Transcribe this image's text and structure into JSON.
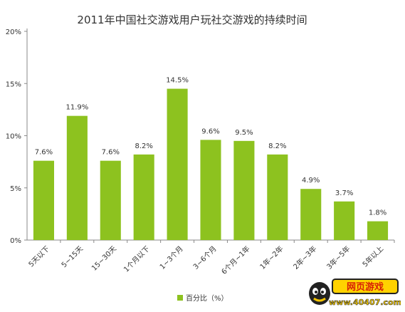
{
  "chart_data": {
    "type": "bar",
    "title": "2011年中国社交游戏用户玩社交游戏的持续时间",
    "categories": [
      "5天以下",
      "5~15天",
      "15~30天",
      "1个月以下",
      "1~3个月",
      "3~6个月",
      "6个月~1年",
      "1年~2年",
      "2年~3年",
      "3年~5年",
      "5年以上"
    ],
    "series": [
      {
        "name": "百分比（%）",
        "values": [
          7.6,
          11.9,
          7.6,
          8.2,
          14.5,
          9.6,
          9.5,
          8.2,
          4.9,
          3.7,
          1.8
        ],
        "labels": [
          "7.6%",
          "11.9%",
          "7.6%",
          "8.2%",
          "14.5%",
          "9.6%",
          "9.5%",
          "8.2%",
          "4.9%",
          "3.7%",
          "1.8%"
        ]
      }
    ],
    "yticks": [
      "0%",
      "5%",
      "10%",
      "15%",
      "20%"
    ],
    "ylim": [
      0,
      20
    ],
    "grid": false,
    "legend_position": "bottom-center",
    "bar_color": "#8dc21f"
  },
  "watermark": {
    "text_top": "网页游戏",
    "text_bottom": "www.40407.com"
  }
}
